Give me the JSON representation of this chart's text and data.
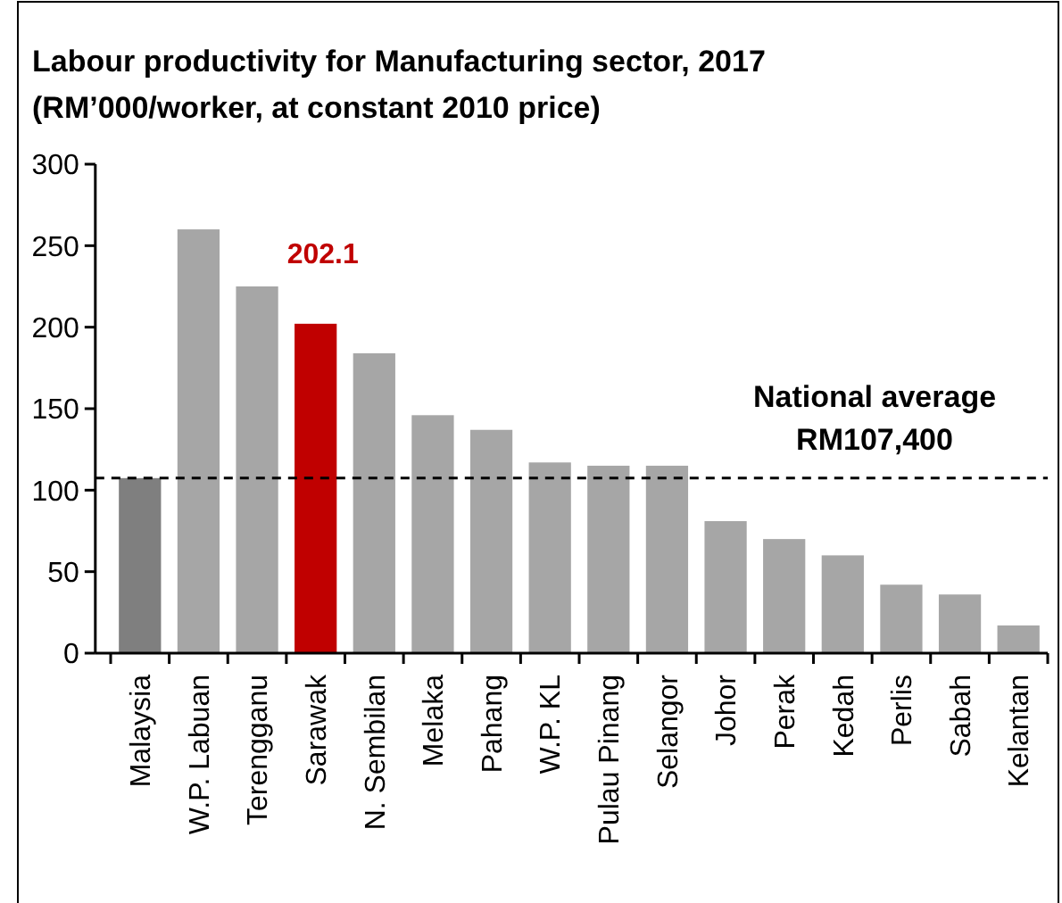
{
  "chart_data": {
    "type": "bar",
    "title": "Labour productivity for Manufacturing sector, 2017",
    "subtitle": "(RM’000/worker, at constant 2010 price)",
    "categories": [
      "Malaysia",
      "W.P. Labuan",
      "Terengganu",
      "Sarawak",
      "N. Sembilan",
      "Melaka",
      "Pahang",
      "W.P. KL",
      "Pulau Pinang",
      "Selangor",
      "Johor",
      "Perak",
      "Kedah",
      "Perlis",
      "Sabah",
      "Kelantan"
    ],
    "values": [
      107.4,
      260,
      225,
      202.1,
      184,
      146,
      137,
      117,
      115,
      115,
      81,
      70,
      60,
      42,
      36,
      17
    ],
    "colors": [
      "#7f7f7f",
      "#a6a6a6",
      "#a6a6a6",
      "#c00000",
      "#a6a6a6",
      "#a6a6a6",
      "#a6a6a6",
      "#a6a6a6",
      "#a6a6a6",
      "#a6a6a6",
      "#a6a6a6",
      "#a6a6a6",
      "#a6a6a6",
      "#a6a6a6",
      "#a6a6a6",
      "#a6a6a6"
    ],
    "ylim": [
      0,
      300
    ],
    "yticks": [
      0,
      50,
      100,
      150,
      200,
      250,
      300
    ],
    "grid": false,
    "ref_lines": [
      {
        "axis": "y",
        "value": 107.4,
        "label": "National average\nRM107,400",
        "color": "#000000",
        "line_style": "dashed"
      }
    ],
    "annotations": [
      {
        "text": "202.1",
        "x": "Sarawak",
        "y": 202.1
      }
    ]
  }
}
